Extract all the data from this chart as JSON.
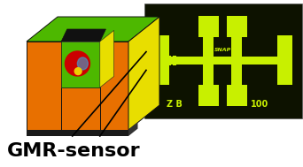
{
  "bg_color": "#ffffff",
  "title": "GMR-sensor",
  "title_fontsize": 16,
  "title_fontweight": "bold",
  "fig_width": 3.42,
  "fig_height": 1.89,
  "sensor_chip_bg": "#0d1200",
  "sensor_chip_color": "#c8f000",
  "box_orange": "#e87000",
  "box_green": "#4db800",
  "box_yellow": "#e8de00",
  "box_dark": "#1a1a1a",
  "circle_red": "#cc0000",
  "circle_blue": "#4499cc",
  "circle_yellow": "#eecc00"
}
